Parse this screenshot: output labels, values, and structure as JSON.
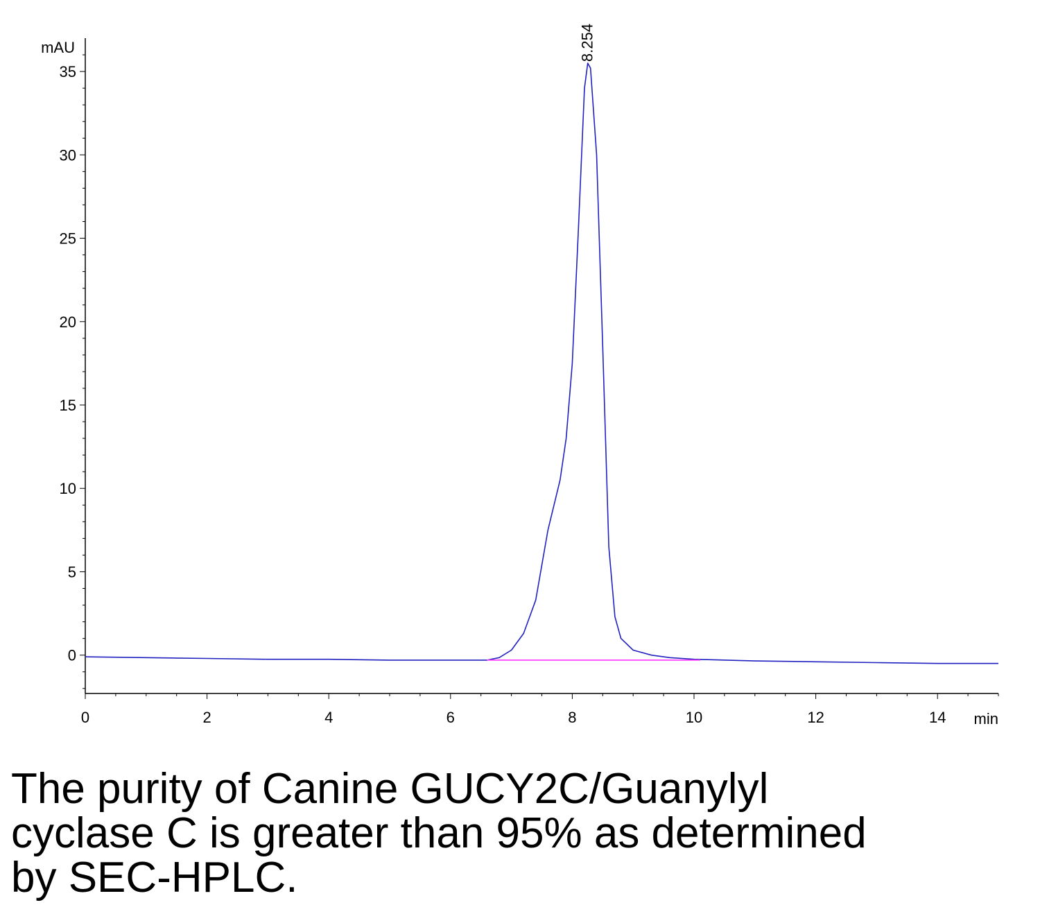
{
  "chart_data": {
    "type": "line",
    "xlabel": "min",
    "ylabel": "mAU",
    "xlim": [
      0,
      15
    ],
    "ylim": [
      -2.3,
      37
    ],
    "x_ticks": [
      0,
      2,
      4,
      6,
      8,
      10,
      12,
      14
    ],
    "y_ticks": [
      0,
      5,
      10,
      15,
      20,
      25,
      30,
      35
    ],
    "grid": false,
    "legend": "none",
    "series": [
      {
        "color": "#2020c0",
        "points": [
          [
            0,
            -0.1
          ],
          [
            1,
            -0.15
          ],
          [
            2,
            -0.2
          ],
          [
            3,
            -0.25
          ],
          [
            4,
            -0.25
          ],
          [
            5,
            -0.3
          ],
          [
            6,
            -0.3
          ],
          [
            6.3,
            -0.3
          ],
          [
            6.6,
            -0.3
          ],
          [
            6.8,
            -0.15
          ],
          [
            7.0,
            0.3
          ],
          [
            7.2,
            1.3
          ],
          [
            7.4,
            3.3
          ],
          [
            7.6,
            7.5
          ],
          [
            7.8,
            10.5
          ],
          [
            7.9,
            13.0
          ],
          [
            8.0,
            17.5
          ],
          [
            8.1,
            25.5
          ],
          [
            8.2,
            34.0
          ],
          [
            8.254,
            35.5
          ],
          [
            8.3,
            35.2
          ],
          [
            8.4,
            30.0
          ],
          [
            8.5,
            18.5
          ],
          [
            8.6,
            6.5
          ],
          [
            8.7,
            2.3
          ],
          [
            8.8,
            1.0
          ],
          [
            9.0,
            0.3
          ],
          [
            9.3,
            0.0
          ],
          [
            9.6,
            -0.15
          ],
          [
            10,
            -0.25
          ],
          [
            11,
            -0.35
          ],
          [
            12,
            -0.4
          ],
          [
            13,
            -0.45
          ],
          [
            14,
            -0.5
          ],
          [
            15,
            -0.5
          ]
        ]
      },
      {
        "color": "#ff40ff",
        "points": [
          [
            6.6,
            -0.3
          ],
          [
            10.1,
            -0.3
          ]
        ]
      }
    ],
    "annotations": [
      {
        "x": 8.254,
        "y": 35.5,
        "text": "8.254"
      }
    ]
  },
  "caption": "The purity of Canine GUCY2C/Guanylyl cyclase C is greater than 95% as determined by SEC-HPLC."
}
